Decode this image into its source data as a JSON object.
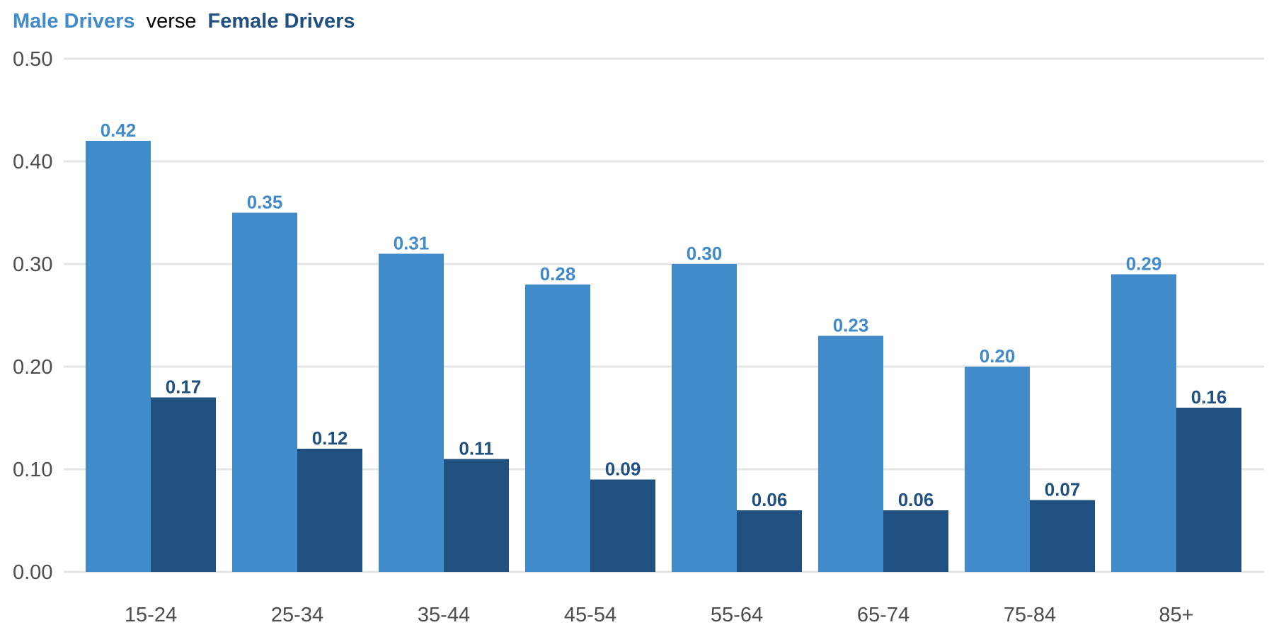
{
  "title": {
    "male": "Male Drivers",
    "verse": "verse",
    "female": "Female Drivers"
  },
  "colors": {
    "male": "#418bca",
    "female": "#1f507f",
    "grid": "#e5e5e5",
    "tick_text": "#4d4d4d"
  },
  "chart_data": {
    "type": "bar",
    "categories": [
      "15-24",
      "25-34",
      "35-44",
      "45-54",
      "55-64",
      "65-74",
      "75-84",
      "85+"
    ],
    "series": [
      {
        "name": "Male Drivers",
        "values": [
          0.42,
          0.35,
          0.31,
          0.28,
          0.3,
          0.23,
          0.2,
          0.29
        ]
      },
      {
        "name": "Female Drivers",
        "values": [
          0.17,
          0.12,
          0.11,
          0.09,
          0.06,
          0.06,
          0.07,
          0.16
        ]
      }
    ],
    "ylim": [
      0,
      0.5
    ],
    "yticks": [
      "0.00",
      "0.10",
      "0.20",
      "0.30",
      "0.40",
      "0.50"
    ],
    "xlabel": "",
    "ylabel": "",
    "grid": true,
    "legend": "title"
  }
}
